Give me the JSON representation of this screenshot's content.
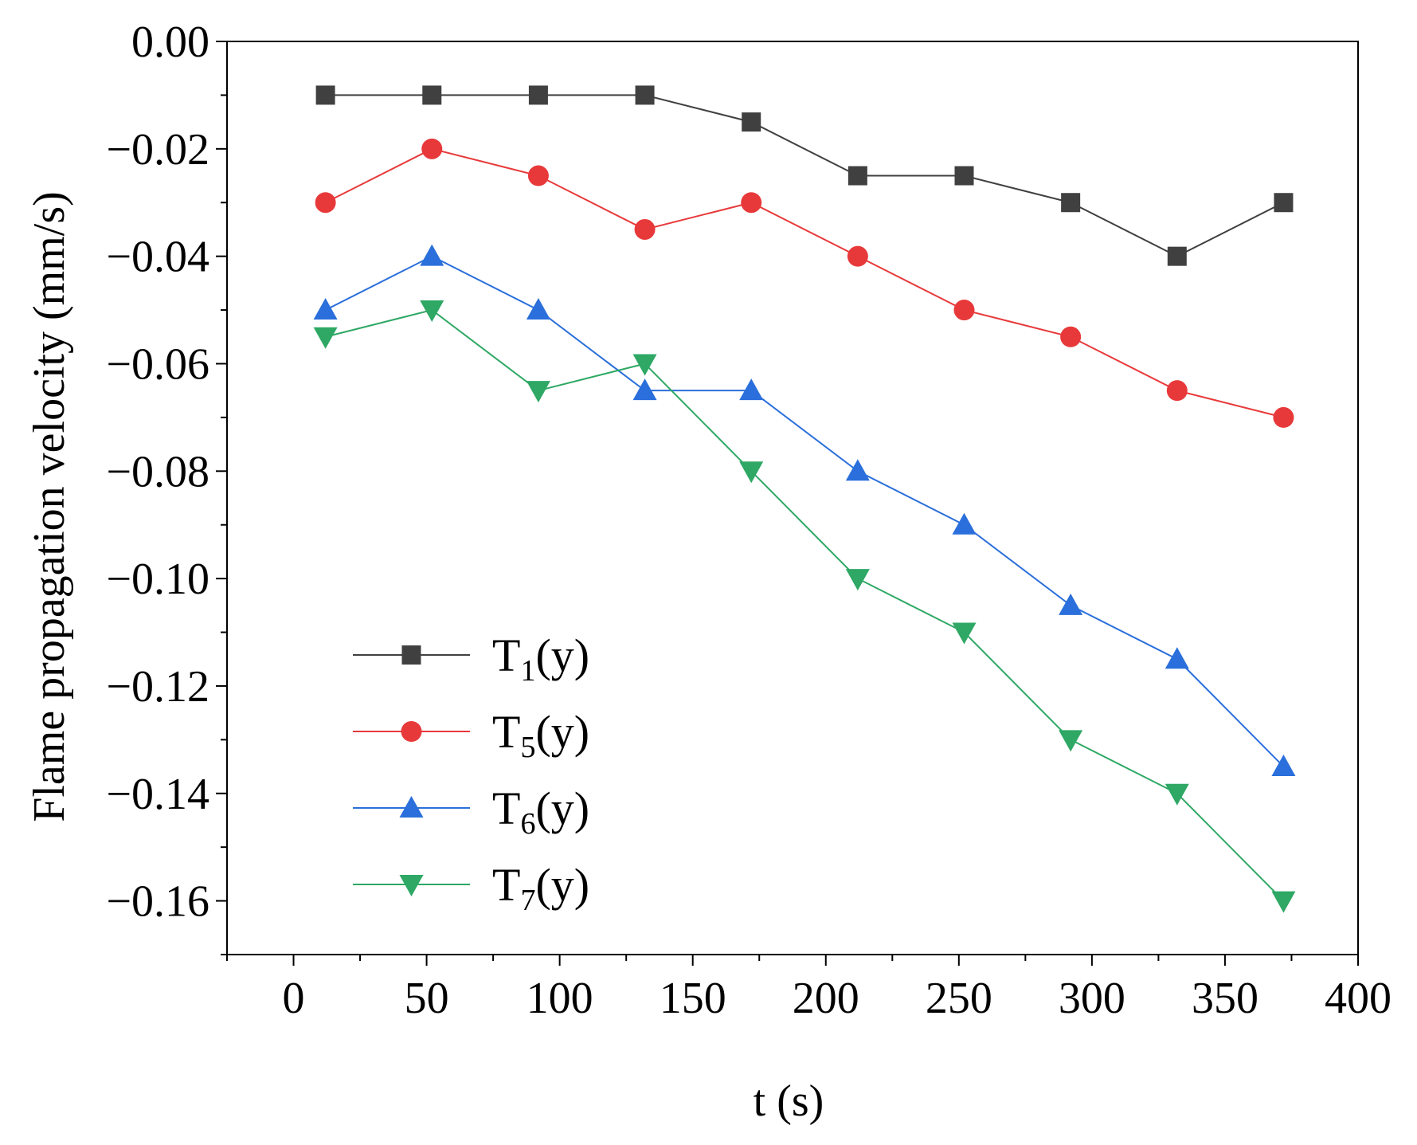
{
  "chart_data": {
    "type": "line",
    "title": "",
    "xlabel": "t (s)",
    "ylabel": "Flame propagation velocity (mm/s)",
    "xlim": [
      -25,
      400
    ],
    "ylim": [
      -0.17,
      0.0
    ],
    "x_ticks": [
      0,
      50,
      100,
      150,
      200,
      250,
      300,
      350,
      400
    ],
    "x_tick_labels": [
      "0",
      "50",
      "100",
      "150",
      "200",
      "250",
      "300",
      "350",
      "400"
    ],
    "y_ticks": [
      0.0,
      -0.02,
      -0.04,
      -0.06,
      -0.08,
      -0.1,
      -0.12,
      -0.14,
      -0.16
    ],
    "y_tick_labels": [
      "0.00",
      "−0.02",
      "−0.04",
      "−0.06",
      "−0.08",
      "−0.10",
      "−0.12",
      "−0.14",
      "−0.16"
    ],
    "grid": false,
    "legend_position": "bottom-left",
    "x": [
      12,
      52,
      92,
      132,
      172,
      212,
      252,
      292,
      332,
      372
    ],
    "series": [
      {
        "name": "T1(y)",
        "base": "T",
        "sub": "1",
        "suffix": "(y)",
        "color": "#404040",
        "marker": "square",
        "values": [
          -0.01,
          -0.01,
          -0.01,
          -0.01,
          -0.015,
          -0.025,
          -0.025,
          -0.03,
          -0.04,
          -0.03
        ]
      },
      {
        "name": "T5(y)",
        "base": "T",
        "sub": "5",
        "suffix": "(y)",
        "color": "#e8393a",
        "marker": "circle",
        "values": [
          -0.03,
          -0.02,
          -0.025,
          -0.035,
          -0.03,
          -0.04,
          -0.05,
          -0.055,
          -0.065,
          -0.07
        ]
      },
      {
        "name": "T6(y)",
        "base": "T",
        "sub": "6",
        "suffix": "(y)",
        "color": "#2a6fdb",
        "marker": "triangle-up",
        "values": [
          -0.05,
          -0.04,
          -0.05,
          -0.065,
          -0.065,
          -0.08,
          -0.09,
          -0.105,
          -0.115,
          -0.135
        ]
      },
      {
        "name": "T7(y)",
        "base": "T",
        "sub": "7",
        "suffix": "(y)",
        "color": "#2ea864",
        "marker": "triangle-down",
        "values": [
          -0.055,
          -0.05,
          -0.065,
          -0.06,
          -0.08,
          -0.1,
          -0.11,
          -0.13,
          -0.14,
          -0.16
        ]
      }
    ]
  }
}
